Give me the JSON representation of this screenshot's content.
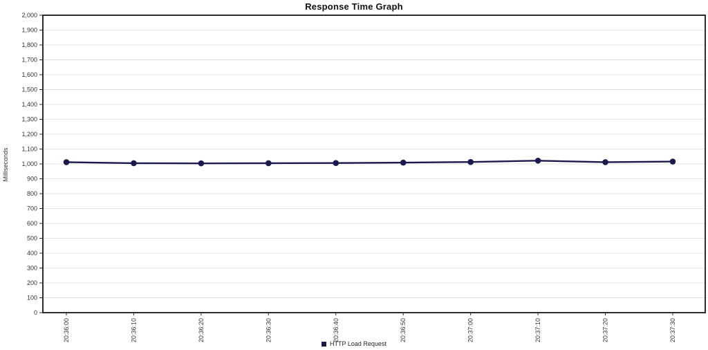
{
  "chart_data": {
    "type": "line",
    "title": "Response Time Graph",
    "ylabel": "Milliseconds",
    "xlabel": "",
    "categories": [
      "20:36:00",
      "20:36:10",
      "20:36:20",
      "20:36:30",
      "20:36:40",
      "20:36:50",
      "20:37:00",
      "20:37:10",
      "20:37:20",
      "20:37:30"
    ],
    "series": [
      {
        "name": "HTTP Load Request",
        "color": "#1a1a4d",
        "values": [
          1012,
          1005,
          1004,
          1005,
          1006,
          1009,
          1013,
          1022,
          1012,
          1016
        ]
      }
    ],
    "ylim": [
      0,
      2000
    ],
    "ytick_step": 100,
    "grid": true,
    "legend_position": "bottom",
    "colors": {
      "axis": "#2b2b2b",
      "grid": "#e3e3e3",
      "tick_label": "#333333",
      "background": "#ffffff"
    }
  }
}
